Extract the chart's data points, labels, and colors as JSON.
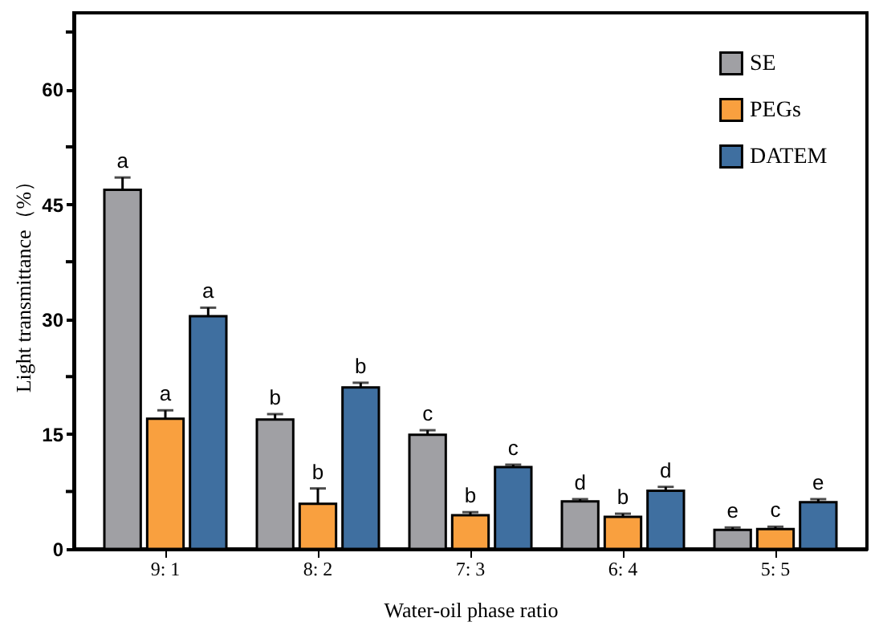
{
  "chart_data": {
    "type": "bar",
    "xlabel": "Water-oil phase ratio",
    "ylabel": "Light transmittance（%）",
    "categories": [
      "9: 1",
      "8: 2",
      "7: 3",
      "6: 4",
      "5: 5"
    ],
    "series": [
      {
        "name": "SE",
        "color": "#a0a0a4",
        "values": [
          46.9,
          16.9,
          14.9,
          6.2,
          2.5
        ],
        "errors": [
          [
            46.9,
            48.5
          ],
          [
            16.9,
            17.6
          ],
          [
            14.9,
            15.5
          ],
          [
            6.2,
            6.5
          ],
          [
            2.5,
            2.8
          ]
        ],
        "value_labels": [
          "a",
          "b",
          "c",
          "d",
          "e"
        ]
      },
      {
        "name": "PEGs",
        "color": "#f9a03f",
        "values": [
          17.0,
          5.9,
          4.4,
          4.2,
          2.6
        ],
        "errors": [
          [
            17.0,
            18.1
          ],
          [
            5.9,
            7.9
          ],
          [
            4.4,
            4.8
          ],
          [
            4.2,
            4.6
          ],
          [
            2.6,
            2.9
          ]
        ],
        "value_labels": [
          "a",
          "b",
          "b",
          "b",
          "c"
        ]
      },
      {
        "name": "DATEM",
        "color": "#3f6fa0",
        "values": [
          30.4,
          21.1,
          10.7,
          7.6,
          6.1
        ],
        "errors": [
          [
            30.4,
            31.5
          ],
          [
            21.1,
            21.7
          ],
          [
            10.7,
            11.0
          ],
          [
            7.6,
            8.1
          ],
          [
            6.1,
            6.5
          ]
        ],
        "value_labels": [
          "a",
          "b",
          "c",
          "d",
          "e"
        ]
      }
    ],
    "ylim": [
      0,
      70
    ],
    "yticks": [
      0,
      {
        "value": 7.5,
        "label": null
      },
      15,
      {
        "value": 22.5,
        "label": null
      },
      30,
      {
        "value": 37.5,
        "label": null
      },
      45,
      {
        "value": 52.5,
        "label": null
      },
      60,
      {
        "value": 67.5,
        "label": null
      }
    ],
    "grid": false,
    "legend": "top right"
  }
}
